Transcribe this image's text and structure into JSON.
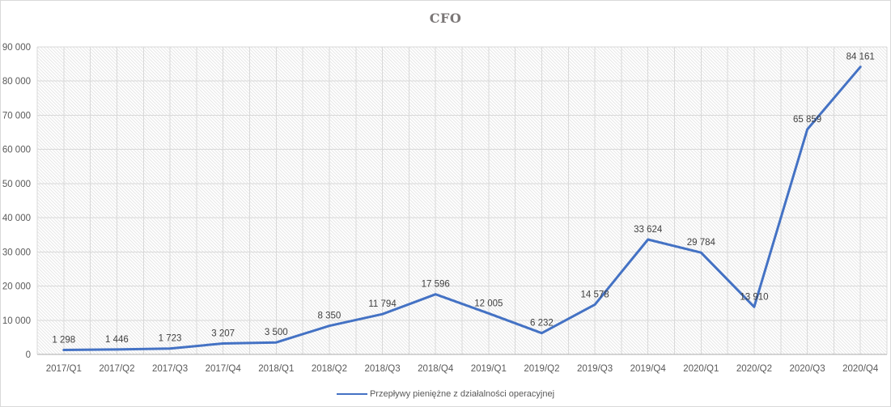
{
  "chart_data": {
    "type": "line",
    "title": "CFO",
    "categories": [
      "2017/Q1",
      "2017/Q2",
      "2017/Q3",
      "2017/Q4",
      "2018/Q1",
      "2018/Q2",
      "2018/Q3",
      "2018/Q4",
      "2019/Q1",
      "2019/Q2",
      "2019/Q3",
      "2019/Q4",
      "2020/Q1",
      "2020/Q2",
      "2020/Q3",
      "2020/Q4"
    ],
    "series": [
      {
        "name": "Przepływy pieniężne z działalności operacyjnej",
        "values": [
          1298,
          1446,
          1723,
          3207,
          3500,
          8350,
          11794,
          17596,
          12005,
          6232,
          14578,
          33624,
          29784,
          13910,
          65859,
          84161
        ],
        "color": "#4472C4"
      }
    ],
    "data_labels": [
      "1 298",
      "1 446",
      "1 723",
      "3 207",
      "3 500",
      "8 350",
      "11 794",
      "17 596",
      "12 005",
      "6 232",
      "14 578",
      "33 624",
      "29 784",
      "13 910",
      "65 859",
      "84 161"
    ],
    "xlabel": "",
    "ylabel": "",
    "ylim": [
      0,
      90000
    ],
    "y_ticks": [
      0,
      10000,
      20000,
      30000,
      40000,
      50000,
      60000,
      70000,
      80000,
      90000
    ],
    "y_tick_labels": [
      "0",
      "10 000",
      "20 000",
      "30 000",
      "40 000",
      "50 000",
      "60 000",
      "70 000",
      "80 000",
      "90 000"
    ],
    "legend_position": "bottom",
    "grid": {
      "horizontal": true,
      "vertical": true,
      "vertical_interval": "half-category"
    },
    "plot_background": "diagonal-hatch",
    "colors": {
      "line": "#4472C4",
      "gridline": "#d9d9d9",
      "axis_line": "#ababab",
      "tick_text": "#595959",
      "data_label_text": "#3f3f3f",
      "title_text": "#7a7676",
      "hatch": "#e7e7e7",
      "background": "#ffffff"
    }
  }
}
